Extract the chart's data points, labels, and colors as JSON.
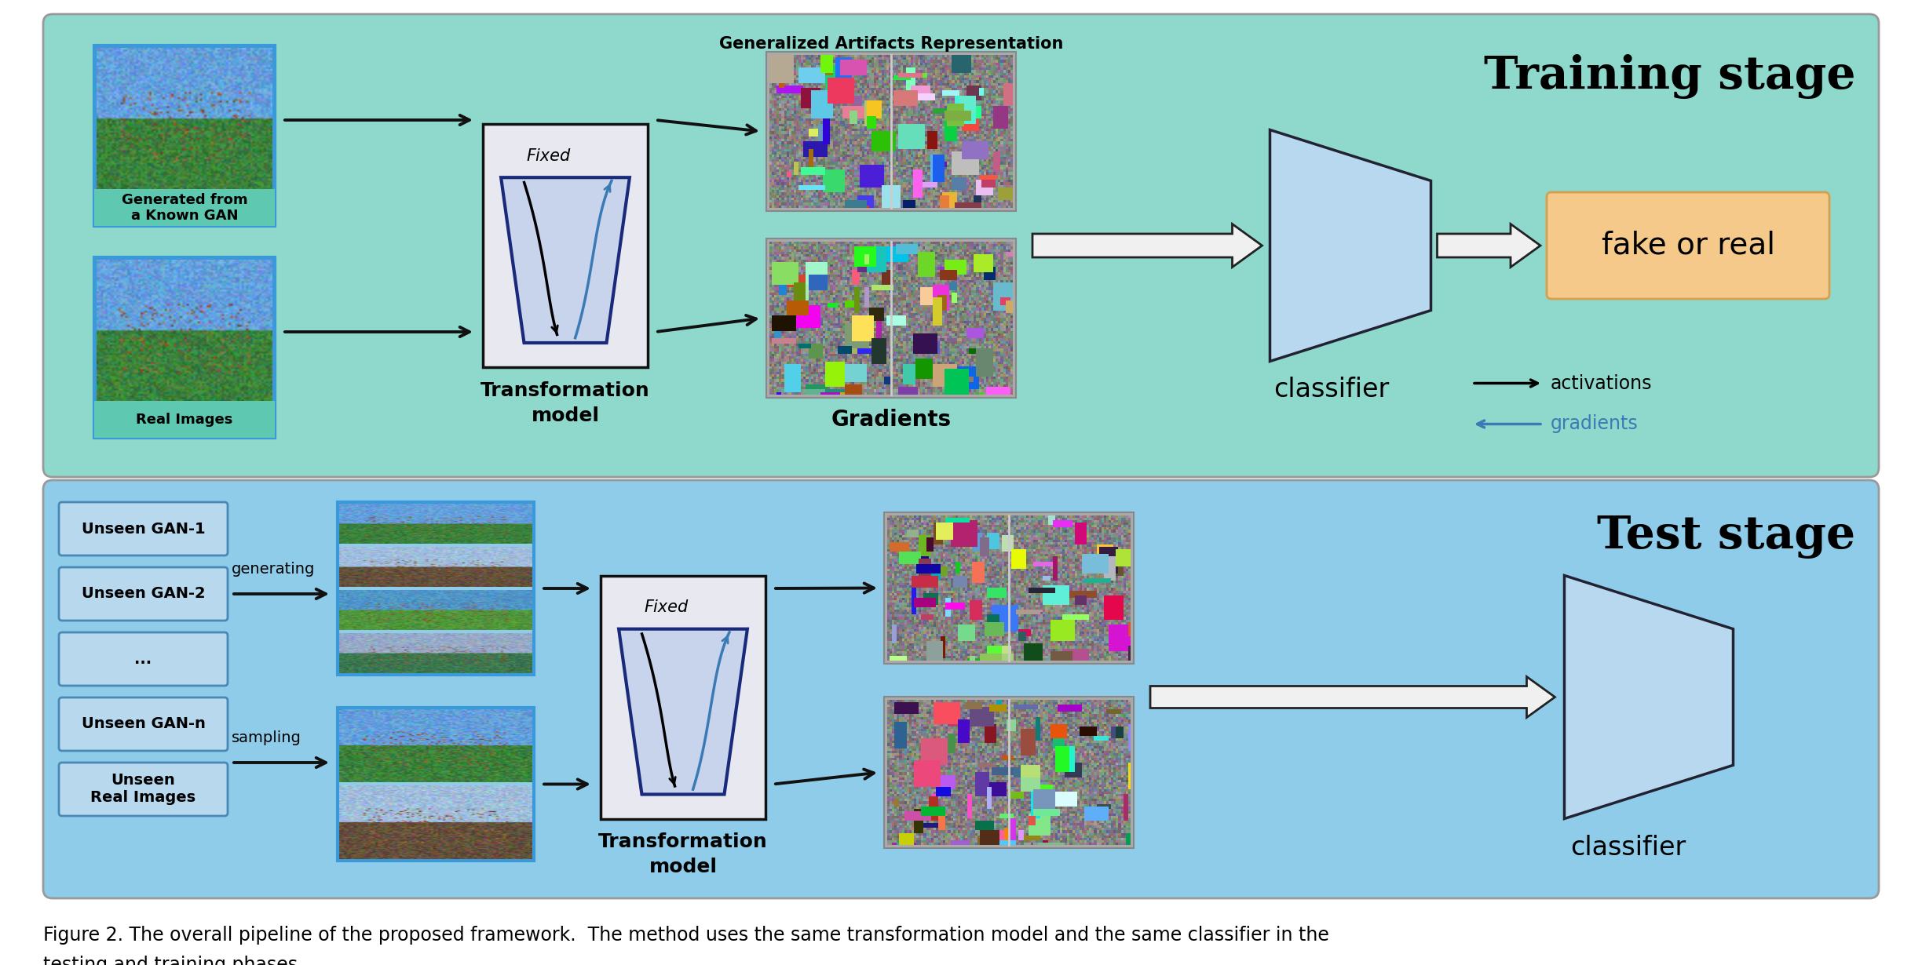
{
  "fig_width": 24.48,
  "fig_height": 12.3,
  "bg_color": "#ffffff",
  "training_bg": "#8ed8cc",
  "test_bg": "#8eccea",
  "training_title": "Training stage",
  "test_title": "Test stage",
  "caption_line1": "Figure 2. The overall pipeline of the proposed framework.  The method uses the same transformation model and the same classifier in the",
  "caption_line2": "testing and training phases.",
  "fake_or_real_color": "#f5c98a",
  "fake_or_real_ec": "#d4a050",
  "image_box_color": "#3a9ad9",
  "gan_box_fc": "#b8d8ee",
  "gan_box_ec": "#4a88b8",
  "legend_arrow_color": "#111111",
  "legend_blue_color": "#3a7ab5",
  "trap_fc": "#c8d4ec",
  "trap_ec": "#1a2a7a",
  "tm_box_fc": "#e8e8f0",
  "tm_box_ec": "#111111",
  "cl_fc": "#b8d8f0",
  "cl_ec": "#222233",
  "arrow_black": "#111111",
  "fat_arrow_fc": "#f0f0f0",
  "fat_arrow_ec": "#222222"
}
